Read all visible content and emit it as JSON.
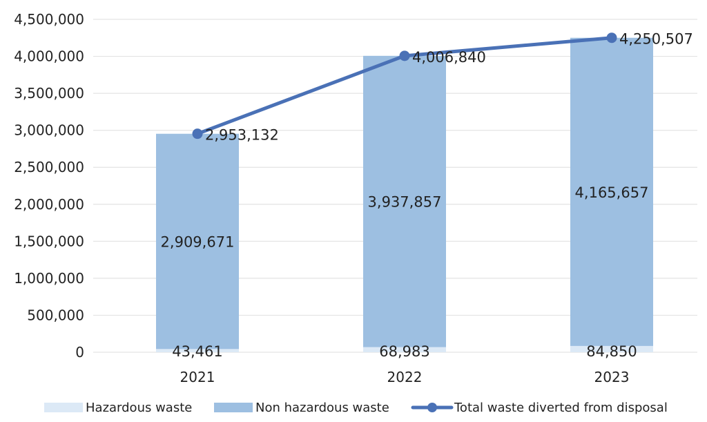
{
  "chart_data": {
    "type": "bar",
    "stacked": true,
    "categories": [
      "2021",
      "2022",
      "2023"
    ],
    "series": [
      {
        "name": "Hazardous waste",
        "kind": "bar",
        "values": [
          43461,
          68983,
          84850
        ],
        "labels": [
          "43,461",
          "68,983",
          "84,850"
        ],
        "color": "#dce9f6"
      },
      {
        "name": "Non hazardous waste",
        "kind": "bar",
        "values": [
          2909671,
          3937857,
          4165657
        ],
        "labels": [
          "2,909,671",
          "3,937,857",
          "4,165,657"
        ],
        "color": "#9dbfe1"
      },
      {
        "name": "Total waste diverted from disposal",
        "kind": "line",
        "values": [
          2953132,
          4006840,
          4250507
        ],
        "labels": [
          "2,953,132",
          "4,006,840",
          "4,250,507"
        ],
        "color": "#4a71b6"
      }
    ],
    "ylim": [
      0,
      4500000
    ],
    "yticks": [
      0,
      500000,
      1000000,
      1500000,
      2000000,
      2500000,
      3000000,
      3500000,
      4000000,
      4500000
    ],
    "ytick_labels": [
      "0",
      "500,000",
      "1,000,000",
      "1,500,000",
      "2,000,000",
      "2,500,000",
      "3,000,000",
      "3,500,000",
      "4,000,000",
      "4,500,000"
    ],
    "grid": true,
    "legend_position": "bottom",
    "gridline_color": "#e3e3e3"
  }
}
